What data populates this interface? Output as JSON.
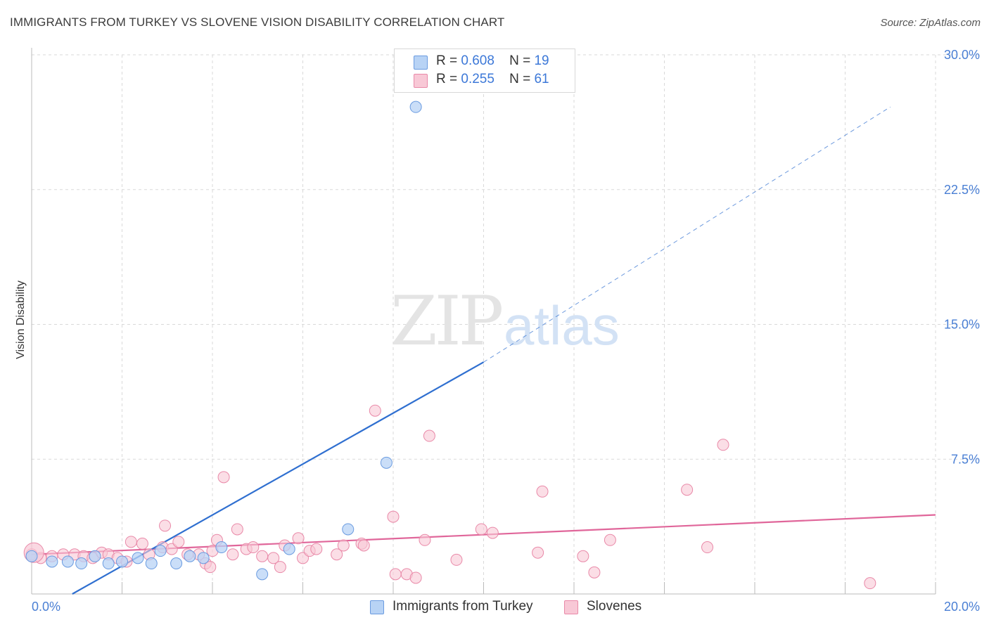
{
  "header": {
    "title": "IMMIGRANTS FROM TURKEY VS SLOVENE VISION DISABILITY CORRELATION CHART",
    "source": "Source: ZipAtlas.com"
  },
  "watermark": {
    "zip": "ZIP",
    "atlas": "atlas"
  },
  "legend": {
    "r_label": "R =",
    "n_label": "N =",
    "rows": [
      {
        "r": "0.608",
        "n": "19"
      },
      {
        "r": "0.255",
        "n": "61"
      }
    ]
  },
  "colors": {
    "blue_fill": "#b8d3f5",
    "blue_stroke": "#6a9be0",
    "blue_line": "#2f6fd0",
    "pink_fill": "#f8c8d6",
    "pink_stroke": "#e989a8",
    "pink_line": "#e0669a",
    "grid": "#d9d9d9",
    "tick_text": "#4a7fd4"
  },
  "chart_data": {
    "type": "scatter",
    "title": "IMMIGRANTS FROM TURKEY VS SLOVENE VISION DISABILITY CORRELATION CHART",
    "xlabel": "",
    "ylabel": "Vision Disability",
    "xlim": [
      0,
      20
    ],
    "ylim": [
      0,
      30
    ],
    "x_tick_labels": [
      "0.0%",
      "20.0%"
    ],
    "y_ticks": [
      7.5,
      15.0,
      22.5,
      30.0
    ],
    "y_tick_labels": [
      "7.5%",
      "15.0%",
      "22.5%",
      "30.0%"
    ],
    "grid": true,
    "series": [
      {
        "name": "Immigrants from Turkey",
        "color": "blue",
        "r": 0.608,
        "n": 19,
        "points": [
          [
            0.0,
            2.1
          ],
          [
            0.45,
            1.8
          ],
          [
            0.8,
            1.8
          ],
          [
            1.1,
            1.7
          ],
          [
            1.4,
            2.1
          ],
          [
            1.7,
            1.7
          ],
          [
            2.0,
            1.8
          ],
          [
            2.35,
            2.0
          ],
          [
            2.65,
            1.7
          ],
          [
            2.85,
            2.4
          ],
          [
            3.2,
            1.7
          ],
          [
            3.5,
            2.1
          ],
          [
            3.8,
            2.0
          ],
          [
            4.2,
            2.6
          ],
          [
            5.1,
            1.1
          ],
          [
            5.7,
            2.5
          ],
          [
            7.0,
            3.6
          ],
          [
            7.85,
            7.3
          ],
          [
            8.5,
            27.1
          ]
        ],
        "trend": {
          "x0": 0.9,
          "y0": 0.0,
          "x1": 10.0,
          "y1": 12.9,
          "dash_x1": 19.0,
          "dash_y1": 27.1
        }
      },
      {
        "name": "Slovenes",
        "color": "pink",
        "r": 0.255,
        "n": 61,
        "points": [
          [
            0.0,
            2.2
          ],
          [
            0.2,
            2.0
          ],
          [
            0.45,
            2.1
          ],
          [
            0.7,
            2.2
          ],
          [
            0.95,
            2.2
          ],
          [
            1.15,
            2.1
          ],
          [
            1.35,
            2.0
          ],
          [
            1.55,
            2.3
          ],
          [
            1.7,
            2.2
          ],
          [
            1.9,
            2.0
          ],
          [
            2.1,
            1.8
          ],
          [
            2.2,
            2.9
          ],
          [
            2.45,
            2.8
          ],
          [
            2.6,
            2.2
          ],
          [
            2.9,
            2.6
          ],
          [
            2.95,
            3.8
          ],
          [
            3.1,
            2.5
          ],
          [
            3.25,
            2.9
          ],
          [
            3.45,
            2.2
          ],
          [
            3.7,
            2.2
          ],
          [
            3.85,
            1.7
          ],
          [
            3.95,
            1.5
          ],
          [
            4.0,
            2.4
          ],
          [
            4.1,
            3.0
          ],
          [
            4.25,
            6.5
          ],
          [
            4.45,
            2.2
          ],
          [
            4.55,
            3.6
          ],
          [
            4.75,
            2.5
          ],
          [
            4.9,
            2.6
          ],
          [
            5.1,
            2.1
          ],
          [
            5.35,
            2.0
          ],
          [
            5.5,
            1.5
          ],
          [
            5.6,
            2.7
          ],
          [
            5.9,
            3.1
          ],
          [
            6.0,
            2.0
          ],
          [
            6.15,
            2.4
          ],
          [
            6.3,
            2.5
          ],
          [
            6.75,
            2.2
          ],
          [
            6.9,
            2.7
          ],
          [
            7.3,
            2.8
          ],
          [
            7.35,
            2.7
          ],
          [
            7.6,
            10.2
          ],
          [
            8.0,
            4.3
          ],
          [
            8.05,
            1.1
          ],
          [
            8.3,
            1.1
          ],
          [
            8.5,
            0.9
          ],
          [
            8.7,
            3.0
          ],
          [
            8.8,
            8.8
          ],
          [
            9.4,
            1.9
          ],
          [
            9.95,
            3.6
          ],
          [
            10.2,
            3.4
          ],
          [
            11.2,
            2.3
          ],
          [
            11.3,
            5.7
          ],
          [
            12.2,
            2.1
          ],
          [
            12.45,
            1.2
          ],
          [
            12.8,
            3.0
          ],
          [
            14.5,
            5.8
          ],
          [
            14.95,
            2.6
          ],
          [
            15.3,
            8.3
          ],
          [
            18.55,
            0.6
          ],
          [
            0.05,
            2.3
          ]
        ],
        "trend": {
          "x0": 0.0,
          "y0": 2.2,
          "x1": 20.0,
          "y1": 4.4
        }
      }
    ]
  },
  "bottom_legend": [
    {
      "label": "Immigrants from Turkey"
    },
    {
      "label": "Slovenes"
    }
  ]
}
